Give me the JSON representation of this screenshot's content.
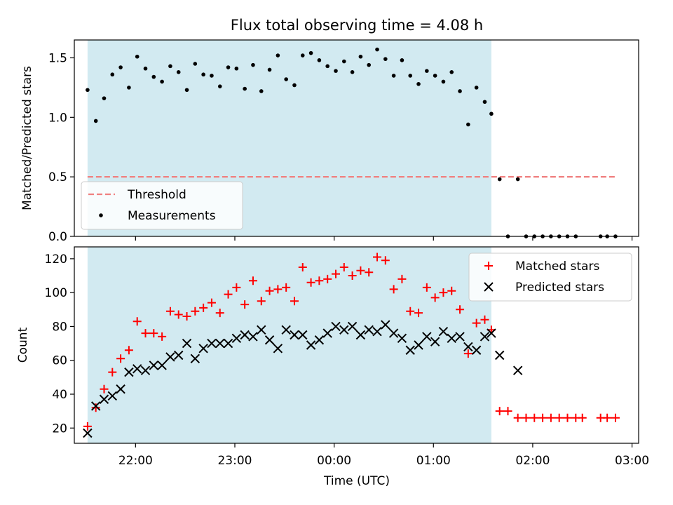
{
  "figure": {
    "title": "Flux total observing time = 4.08 h",
    "xlabel": "Time (UTC)"
  },
  "chart_data": [
    {
      "type": "scatter",
      "title": "Flux total observing time = 4.08 h",
      "ylabel": "Matched/Predicted stars",
      "xlabel": "",
      "xlim": [
        "21:23",
        "03:04"
      ],
      "ylim": [
        0,
        1.65
      ],
      "x_ticks": [
        "22:00",
        "23:00",
        "00:00",
        "01:00",
        "02:00",
        "03:00"
      ],
      "y_ticks": [
        0.0,
        0.5,
        1.0,
        1.5
      ],
      "y_tick_labels": [
        "0.0",
        "0.5",
        "1.0",
        "1.5"
      ],
      "shaded_interval": [
        "21:31",
        "01:35"
      ],
      "shaded_color": "#add8e6",
      "legend_position": "lower-left",
      "series": [
        {
          "name": "Threshold",
          "style": "dashed-line",
          "color": "#f08080",
          "points": [
            [
              "21:31",
              0.5
            ],
            [
              "02:50",
              0.5
            ]
          ]
        },
        {
          "name": "Measurements",
          "style": "dot",
          "color": "#000000",
          "points": [
            [
              "21:31",
              1.23
            ],
            [
              "21:36",
              0.97
            ],
            [
              "21:41",
              1.16
            ],
            [
              "21:46",
              1.36
            ],
            [
              "21:51",
              1.42
            ],
            [
              "21:56",
              1.25
            ],
            [
              "22:01",
              1.51
            ],
            [
              "22:06",
              1.41
            ],
            [
              "22:11",
              1.34
            ],
            [
              "22:16",
              1.3
            ],
            [
              "22:21",
              1.43
            ],
            [
              "22:26",
              1.38
            ],
            [
              "22:31",
              1.23
            ],
            [
              "22:36",
              1.45
            ],
            [
              "22:41",
              1.36
            ],
            [
              "22:46",
              1.35
            ],
            [
              "22:51",
              1.26
            ],
            [
              "22:56",
              1.42
            ],
            [
              "23:01",
              1.41
            ],
            [
              "23:06",
              1.24
            ],
            [
              "23:11",
              1.44
            ],
            [
              "23:16",
              1.22
            ],
            [
              "23:21",
              1.4
            ],
            [
              "23:26",
              1.52
            ],
            [
              "23:31",
              1.32
            ],
            [
              "23:36",
              1.27
            ],
            [
              "23:41",
              1.52
            ],
            [
              "23:46",
              1.54
            ],
            [
              "23:51",
              1.48
            ],
            [
              "23:56",
              1.43
            ],
            [
              "00:01",
              1.39
            ],
            [
              "00:06",
              1.47
            ],
            [
              "00:11",
              1.38
            ],
            [
              "00:16",
              1.51
            ],
            [
              "00:21",
              1.44
            ],
            [
              "00:26",
              1.57
            ],
            [
              "00:31",
              1.49
            ],
            [
              "00:36",
              1.35
            ],
            [
              "00:41",
              1.48
            ],
            [
              "00:46",
              1.35
            ],
            [
              "00:51",
              1.28
            ],
            [
              "00:56",
              1.39
            ],
            [
              "01:01",
              1.35
            ],
            [
              "01:06",
              1.3
            ],
            [
              "01:11",
              1.38
            ],
            [
              "01:16",
              1.22
            ],
            [
              "01:21",
              0.94
            ],
            [
              "01:26",
              1.25
            ],
            [
              "01:31",
              1.13
            ],
            [
              "01:35",
              1.03
            ],
            [
              "01:40",
              0.48
            ],
            [
              "01:45",
              0.0
            ],
            [
              "01:51",
              0.48
            ],
            [
              "01:56",
              0.0
            ],
            [
              "02:01",
              0.0
            ],
            [
              "02:06",
              0.0
            ],
            [
              "02:11",
              0.0
            ],
            [
              "02:16",
              0.0
            ],
            [
              "02:21",
              0.0
            ],
            [
              "02:26",
              0.0
            ],
            [
              "02:41",
              0.0
            ],
            [
              "02:45",
              0.0
            ],
            [
              "02:50",
              0.0
            ]
          ]
        }
      ]
    },
    {
      "type": "scatter",
      "title": "",
      "ylabel": "Count",
      "xlabel": "Time (UTC)",
      "xlim": [
        "21:23",
        "03:04"
      ],
      "ylim": [
        11,
        127
      ],
      "x_ticks": [
        "22:00",
        "23:00",
        "00:00",
        "01:00",
        "02:00",
        "03:00"
      ],
      "y_ticks": [
        20,
        40,
        60,
        80,
        100,
        120
      ],
      "y_tick_labels": [
        "20",
        "40",
        "60",
        "80",
        "100",
        "120"
      ],
      "shaded_interval": [
        "21:31",
        "01:35"
      ],
      "shaded_color": "#add8e6",
      "legend_position": "upper-right",
      "series": [
        {
          "name": "Matched stars",
          "style": "plus",
          "color": "#ff0000",
          "points": [
            [
              "21:31",
              21
            ],
            [
              "21:36",
              32
            ],
            [
              "21:41",
              43
            ],
            [
              "21:46",
              53
            ],
            [
              "21:51",
              61
            ],
            [
              "21:56",
              66
            ],
            [
              "22:01",
              83
            ],
            [
              "22:06",
              76
            ],
            [
              "22:11",
              76
            ],
            [
              "22:16",
              74
            ],
            [
              "22:21",
              89
            ],
            [
              "22:26",
              87
            ],
            [
              "22:31",
              86
            ],
            [
              "22:36",
              89
            ],
            [
              "22:41",
              91
            ],
            [
              "22:46",
              94
            ],
            [
              "22:51",
              88
            ],
            [
              "22:56",
              99
            ],
            [
              "23:01",
              103
            ],
            [
              "23:06",
              93
            ],
            [
              "23:11",
              107
            ],
            [
              "23:16",
              95
            ],
            [
              "23:21",
              101
            ],
            [
              "23:26",
              102
            ],
            [
              "23:31",
              103
            ],
            [
              "23:36",
              95
            ],
            [
              "23:41",
              115
            ],
            [
              "23:46",
              106
            ],
            [
              "23:51",
              107
            ],
            [
              "23:56",
              108
            ],
            [
              "00:01",
              111
            ],
            [
              "00:06",
              115
            ],
            [
              "00:11",
              110
            ],
            [
              "00:16",
              113
            ],
            [
              "00:21",
              112
            ],
            [
              "00:26",
              121
            ],
            [
              "00:31",
              119
            ],
            [
              "00:36",
              102
            ],
            [
              "00:41",
              108
            ],
            [
              "00:46",
              89
            ],
            [
              "00:51",
              88
            ],
            [
              "00:56",
              103
            ],
            [
              "01:01",
              97
            ],
            [
              "01:06",
              100
            ],
            [
              "01:11",
              101
            ],
            [
              "01:16",
              90
            ],
            [
              "01:21",
              64
            ],
            [
              "01:26",
              82
            ],
            [
              "01:31",
              84
            ],
            [
              "01:35",
              78
            ],
            [
              "01:40",
              30
            ],
            [
              "01:45",
              30
            ],
            [
              "01:51",
              26
            ],
            [
              "01:56",
              26
            ],
            [
              "02:01",
              26
            ],
            [
              "02:06",
              26
            ],
            [
              "02:11",
              26
            ],
            [
              "02:16",
              26
            ],
            [
              "02:21",
              26
            ],
            [
              "02:26",
              26
            ],
            [
              "02:30",
              26
            ],
            [
              "02:41",
              26
            ],
            [
              "02:45",
              26
            ],
            [
              "02:50",
              26
            ]
          ]
        },
        {
          "name": "Predicted stars",
          "style": "x",
          "color": "#000000",
          "points": [
            [
              "21:31",
              17
            ],
            [
              "21:36",
              33
            ],
            [
              "21:41",
              37
            ],
            [
              "21:46",
              39
            ],
            [
              "21:51",
              43
            ],
            [
              "21:56",
              53
            ],
            [
              "22:01",
              55
            ],
            [
              "22:06",
              54
            ],
            [
              "22:11",
              57
            ],
            [
              "22:16",
              57
            ],
            [
              "22:21",
              62
            ],
            [
              "22:26",
              63
            ],
            [
              "22:31",
              70
            ],
            [
              "22:36",
              61
            ],
            [
              "22:41",
              67
            ],
            [
              "22:46",
              70
            ],
            [
              "22:51",
              70
            ],
            [
              "22:56",
              70
            ],
            [
              "23:01",
              73
            ],
            [
              "23:06",
              75
            ],
            [
              "23:11",
              74
            ],
            [
              "23:16",
              78
            ],
            [
              "23:21",
              72
            ],
            [
              "23:26",
              67
            ],
            [
              "23:31",
              78
            ],
            [
              "23:36",
              75
            ],
            [
              "23:41",
              75
            ],
            [
              "23:46",
              69
            ],
            [
              "23:51",
              72
            ],
            [
              "23:56",
              76
            ],
            [
              "00:01",
              80
            ],
            [
              "00:06",
              78
            ],
            [
              "00:11",
              80
            ],
            [
              "00:16",
              75
            ],
            [
              "00:21",
              78
            ],
            [
              "00:26",
              77
            ],
            [
              "00:31",
              81
            ],
            [
              "00:36",
              76
            ],
            [
              "00:41",
              73
            ],
            [
              "00:46",
              66
            ],
            [
              "00:51",
              69
            ],
            [
              "00:56",
              74
            ],
            [
              "01:01",
              71
            ],
            [
              "01:06",
              77
            ],
            [
              "01:11",
              73
            ],
            [
              "01:16",
              74
            ],
            [
              "01:21",
              68
            ],
            [
              "01:26",
              66
            ],
            [
              "01:31",
              74
            ],
            [
              "01:35",
              76
            ],
            [
              "01:40",
              63
            ],
            [
              "01:51",
              54
            ]
          ]
        }
      ]
    }
  ]
}
